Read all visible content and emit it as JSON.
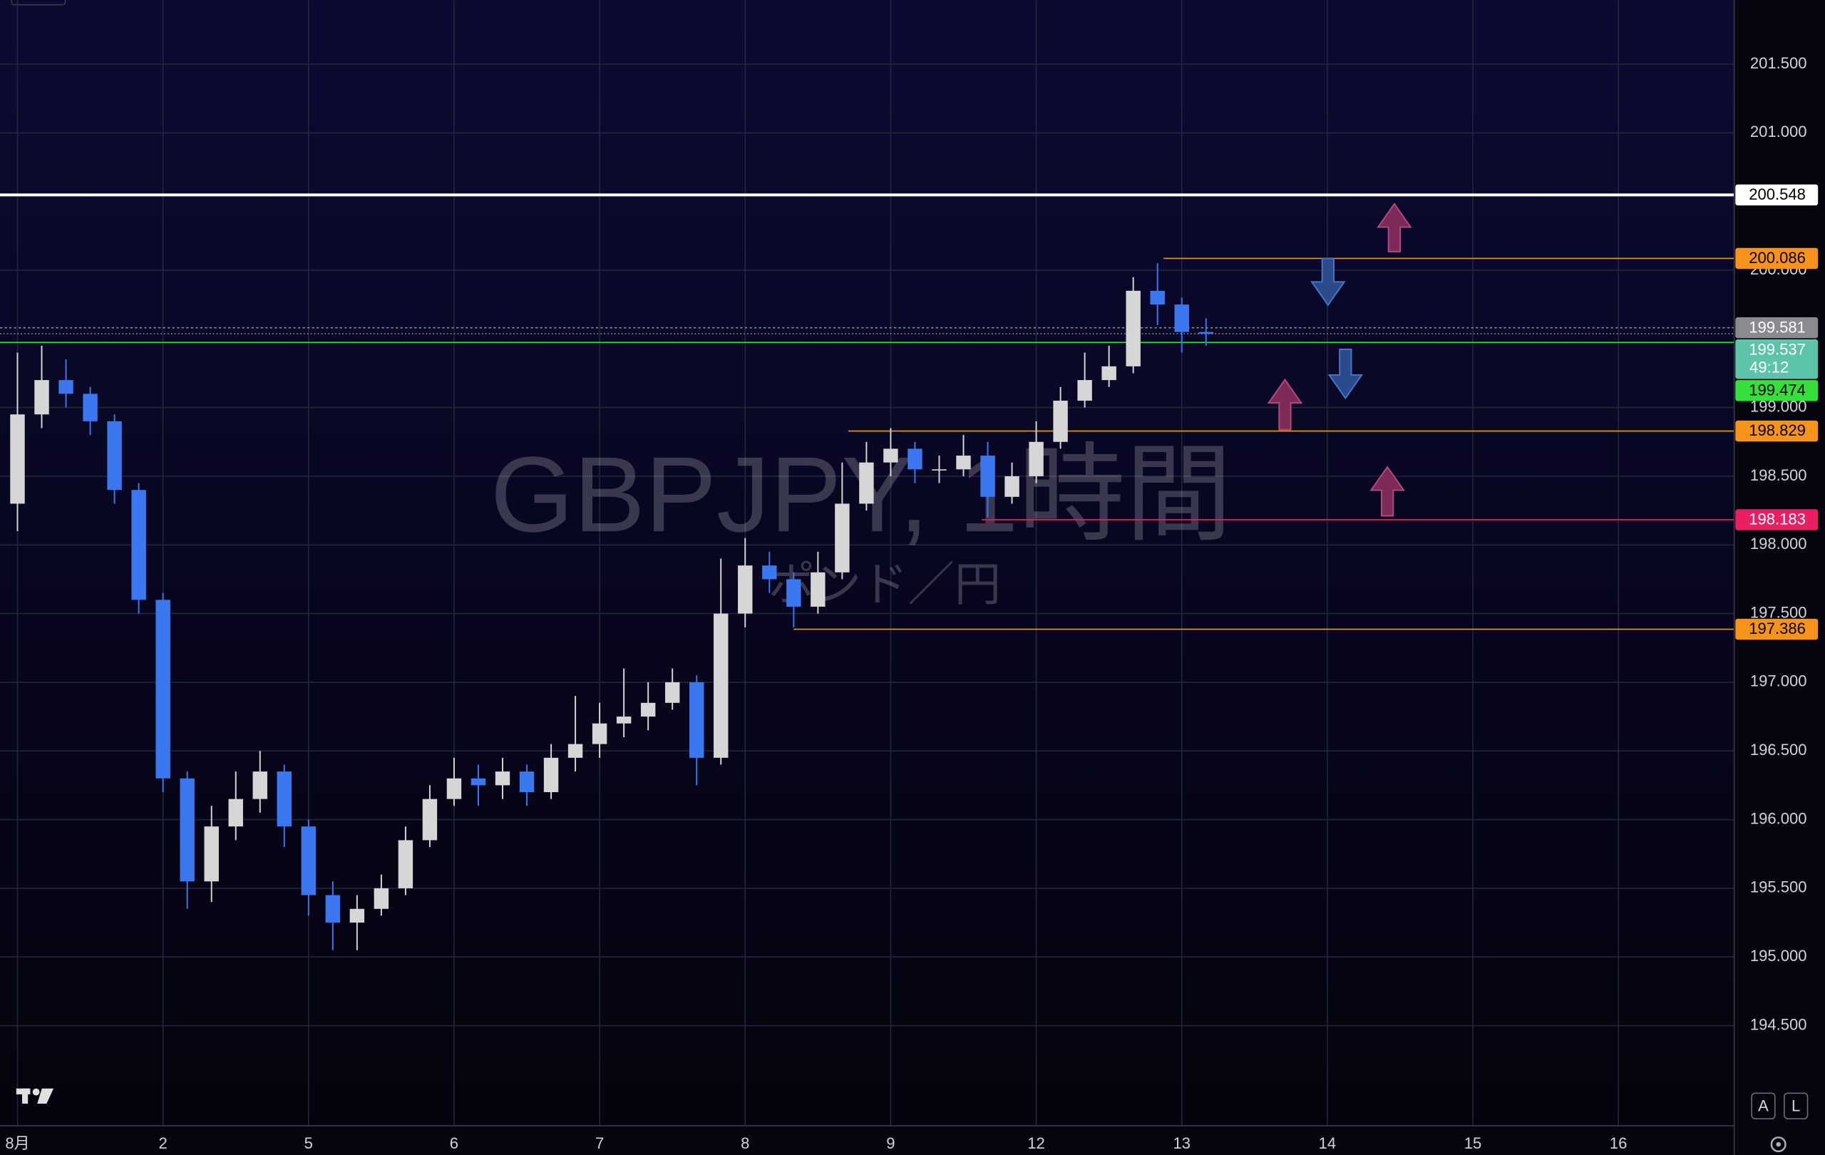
{
  "chart_data": {
    "type": "candlestick",
    "watermark": "GBPJPY, 1時間",
    "watermark_sub": "ポンド／円",
    "x": [
      0,
      4,
      8,
      12,
      16,
      20,
      24,
      28,
      32,
      36,
      40,
      44,
      48,
      52,
      56,
      60,
      64,
      68,
      72,
      76,
      80,
      84,
      88,
      92,
      96,
      100,
      104,
      108,
      112,
      116,
      120,
      124,
      128,
      132,
      136,
      140,
      144,
      148,
      152,
      156,
      160,
      164,
      168,
      172,
      176,
      180,
      184,
      188,
      192,
      196
    ],
    "open": [
      198.3,
      198.95,
      199.2,
      199.1,
      198.9,
      198.4,
      197.6,
      196.3,
      195.55,
      195.95,
      196.15,
      196.35,
      195.95,
      195.45,
      195.25,
      195.35,
      195.5,
      195.85,
      196.15,
      196.3,
      196.25,
      196.35,
      196.2,
      196.45,
      196.55,
      196.7,
      196.75,
      196.85,
      197.0,
      196.45,
      197.5,
      197.85,
      197.75,
      197.55,
      197.8,
      198.3,
      198.6,
      198.7,
      198.55,
      198.55,
      198.65,
      198.35,
      198.5,
      198.75,
      199.05,
      199.2,
      199.3,
      199.85,
      199.75,
      199.55
    ],
    "high": [
      199.4,
      199.45,
      199.35,
      199.15,
      198.95,
      198.45,
      197.65,
      196.35,
      196.1,
      196.35,
      196.5,
      196.4,
      196.0,
      195.55,
      195.45,
      195.6,
      195.95,
      196.25,
      196.45,
      196.4,
      196.45,
      196.4,
      196.55,
      196.9,
      196.85,
      197.1,
      197.0,
      197.1,
      197.05,
      197.9,
      198.05,
      197.95,
      197.8,
      197.95,
      198.6,
      198.75,
      198.85,
      198.75,
      198.65,
      198.8,
      198.75,
      198.6,
      198.9,
      199.15,
      199.4,
      199.45,
      199.95,
      200.05,
      199.8,
      199.65
    ],
    "low": [
      198.1,
      198.85,
      199.0,
      198.8,
      198.3,
      197.5,
      196.2,
      195.35,
      195.4,
      195.85,
      196.05,
      195.8,
      195.3,
      195.05,
      195.05,
      195.3,
      195.45,
      195.8,
      196.1,
      196.1,
      196.15,
      196.1,
      196.15,
      196.35,
      196.45,
      196.6,
      196.65,
      196.8,
      196.25,
      196.4,
      197.4,
      197.65,
      197.4,
      197.5,
      197.75,
      198.25,
      198.5,
      198.45,
      198.45,
      198.5,
      198.2,
      198.3,
      198.45,
      198.7,
      199.0,
      199.15,
      199.25,
      199.6,
      199.4,
      199.45
    ],
    "close": [
      198.95,
      199.2,
      199.1,
      198.9,
      198.4,
      197.6,
      196.3,
      195.55,
      195.95,
      196.15,
      196.35,
      195.95,
      195.45,
      195.25,
      195.35,
      195.5,
      195.85,
      196.15,
      196.3,
      196.25,
      196.35,
      196.2,
      196.45,
      196.55,
      196.7,
      196.75,
      196.85,
      197.0,
      196.45,
      197.5,
      197.85,
      197.75,
      197.55,
      197.8,
      198.3,
      198.6,
      198.7,
      198.55,
      198.55,
      198.65,
      198.35,
      198.5,
      198.75,
      199.05,
      199.2,
      199.3,
      199.85,
      199.75,
      199.55,
      199.537
    ],
    "up_color": "#d6d6d6",
    "down_color": "#3b78f0",
    "countdown": "49:12",
    "last_color": "#5cc4a8",
    "levels": [
      {
        "value": 200.548,
        "color": "#ffffff",
        "text_color": "#000000"
      },
      {
        "value": 200.086,
        "color": "#f7931a",
        "text_color": "#000000",
        "from": 189
      },
      {
        "value": 199.581,
        "color": "#8a8a8f",
        "text_color": "#ffffff",
        "dashed": true
      },
      {
        "value": 199.474,
        "color": "#36e03a",
        "text_color": "#000000"
      },
      {
        "value": 198.829,
        "color": "#f7931a",
        "text_color": "#000000",
        "from": 137
      },
      {
        "value": 198.183,
        "color": "#e91e63",
        "text_color": "#ffffff",
        "from": 159
      },
      {
        "value": 197.386,
        "color": "#f7931a",
        "text_color": "#000000",
        "from": 128
      }
    ],
    "xlim": [
      -2.88,
      283.1
    ],
    "xticks": [
      {
        "value": 0,
        "label": "8月"
      },
      {
        "value": 24,
        "label": "2"
      },
      {
        "value": 48,
        "label": "5"
      },
      {
        "value": 72,
        "label": "6"
      },
      {
        "value": 96,
        "label": "7"
      },
      {
        "value": 120,
        "label": "8"
      },
      {
        "value": 144,
        "label": "9"
      },
      {
        "value": 168,
        "label": "12"
      },
      {
        "value": 192,
        "label": "13"
      },
      {
        "value": 216,
        "label": "14"
      },
      {
        "value": 240,
        "label": "15"
      },
      {
        "value": 264,
        "label": "16"
      }
    ],
    "ylim": [
      193.771,
      201.966
    ],
    "yticks": [
      {
        "value": 194.5,
        "label": "194.500"
      },
      {
        "value": 195,
        "label": "195.000"
      },
      {
        "value": 195.5,
        "label": "195.500"
      },
      {
        "value": 196,
        "label": "196.000"
      },
      {
        "value": 196.5,
        "label": "196.500"
      },
      {
        "value": 197,
        "label": "197.000"
      },
      {
        "value": 197.5,
        "label": "197.500"
      },
      {
        "value": 198,
        "label": "198.000"
      },
      {
        "value": 198.5,
        "label": "198.500"
      },
      {
        "value": 199,
        "label": "199.000"
      },
      {
        "value": 200,
        "label": "200.000"
      },
      {
        "value": 201,
        "label": "201.000"
      },
      {
        "value": 201.5,
        "label": "201.500"
      }
    ],
    "grid": true,
    "buttons": [
      "A",
      "L"
    ]
  }
}
